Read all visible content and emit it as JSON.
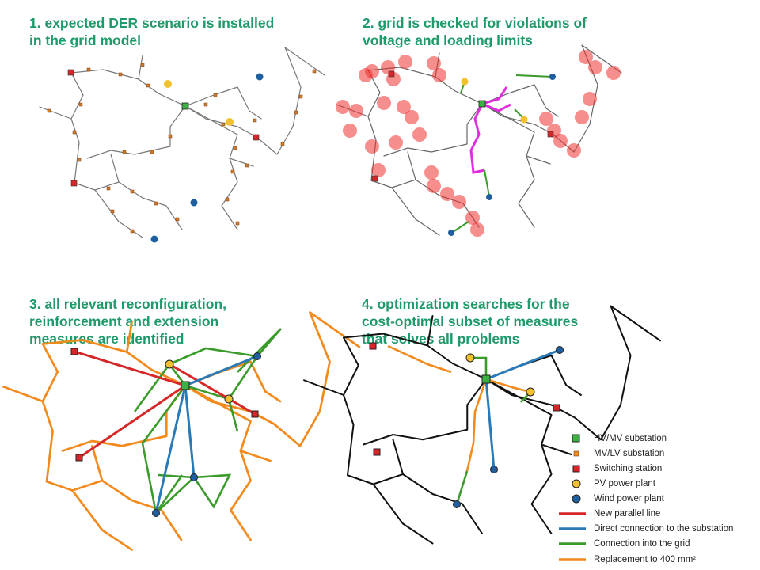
{
  "panels": [
    {
      "title": [
        "1. expected DER scenario is installed",
        "in the grid model"
      ]
    },
    {
      "title": [
        "2. grid is checked for violations of",
        "voltage and loading limits"
      ]
    },
    {
      "title": [
        "3. all relevant reconfiguration,",
        "reinforcement and extension",
        "measures are identified"
      ]
    },
    {
      "title": [
        "4. optimization searches for the",
        "cost-optimal subset of measures",
        "that solves all problems"
      ]
    }
  ],
  "legend": {
    "items": [
      {
        "label": "HV/MV substation"
      },
      {
        "label": "MV/LV substation"
      },
      {
        "label": "Switching station"
      },
      {
        "label": "PV power plant"
      },
      {
        "label": "Wind power plant"
      },
      {
        "label": "New parallel line"
      },
      {
        "label": "Direct connection to the substation"
      },
      {
        "label": "Connection into the grid"
      },
      {
        "label": "Replacement to 400 mm²"
      }
    ]
  }
}
